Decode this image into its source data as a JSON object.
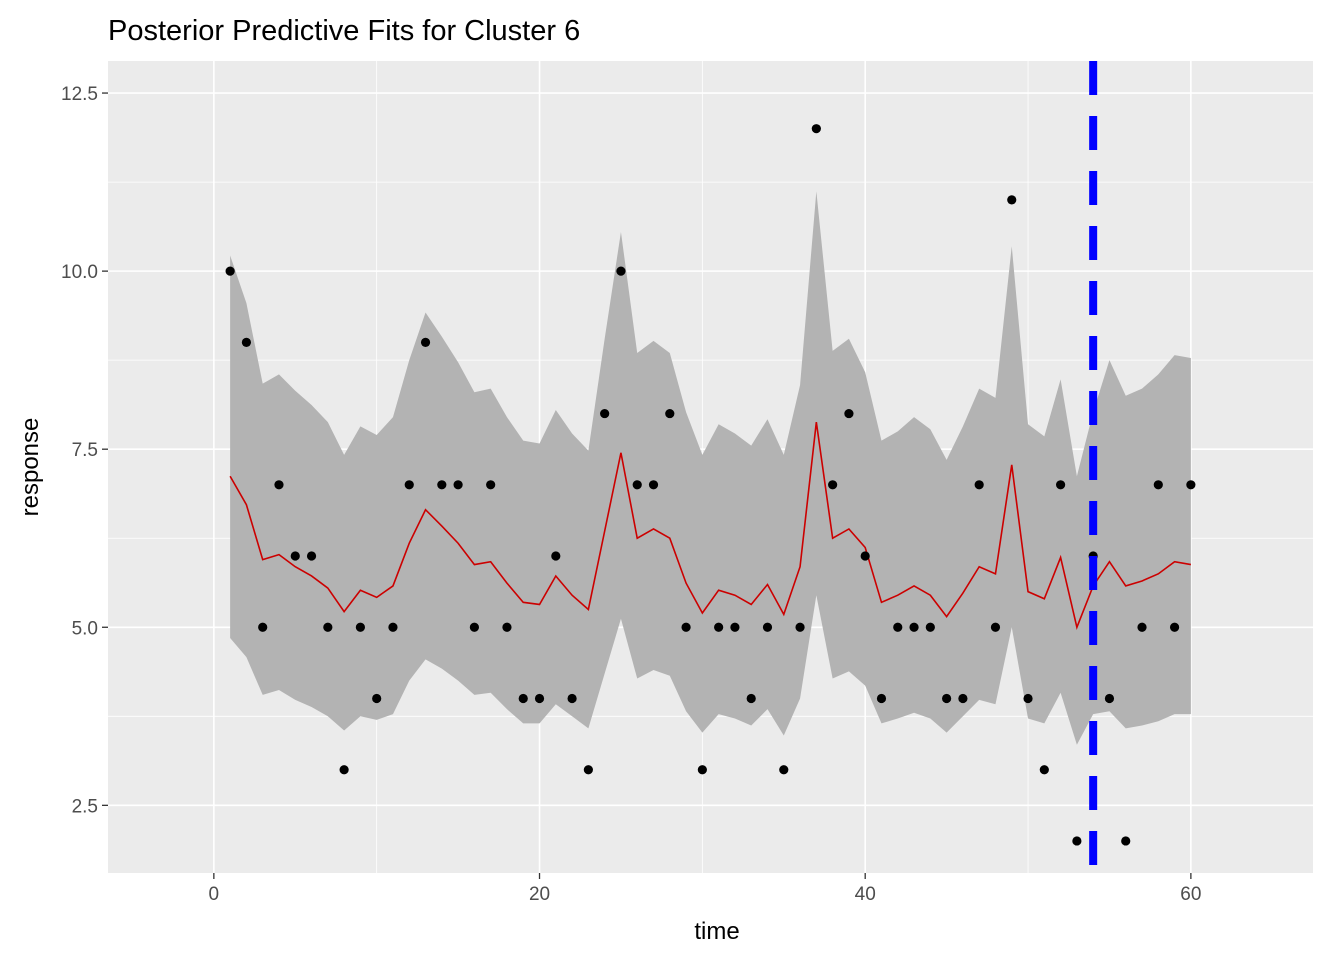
{
  "chart_data": {
    "type": "line",
    "title": "Posterior Predictive Fits for Cluster 6",
    "xlabel": "time",
    "ylabel": "response",
    "xlim": [
      -6.5,
      67.5
    ],
    "ylim": [
      1.55,
      12.95
    ],
    "x_ticks": [
      0,
      20,
      40,
      60
    ],
    "x_tick_labels": [
      "0",
      "20",
      "40",
      "60"
    ],
    "y_ticks": [
      2.5,
      5.0,
      7.5,
      10.0,
      12.5
    ],
    "y_tick_labels": [
      "2.5",
      "5.0",
      "7.5",
      "10.0",
      "12.5"
    ],
    "grid": true,
    "colors": {
      "panel": "#ebebeb",
      "grid": "#ffffff",
      "band": "#b3b3b3",
      "fit_line": "#cc0000",
      "points": "#000000",
      "vline": "#0000ff"
    },
    "vline_x": 54,
    "series": [
      {
        "type": "scatter",
        "x": [
          1,
          2,
          3,
          4,
          5,
          6,
          7,
          8,
          9,
          10,
          11,
          12,
          13,
          14,
          15,
          16,
          17,
          18,
          19,
          20,
          21,
          22,
          23,
          24,
          25,
          26,
          27,
          28,
          29,
          30,
          31,
          32,
          33,
          34,
          35,
          36,
          37,
          38,
          39,
          40,
          41,
          42,
          43,
          44,
          45,
          46,
          47,
          48,
          49,
          50,
          51,
          52,
          53,
          54,
          55,
          56,
          57,
          58,
          59,
          60
        ],
        "values": [
          10,
          9,
          5,
          7,
          6,
          6,
          5,
          3,
          5,
          4,
          5,
          7,
          9,
          7,
          7,
          5,
          7,
          5,
          4,
          4,
          6,
          4,
          3,
          8,
          10,
          7,
          7,
          8,
          5,
          3,
          5,
          5,
          4,
          5,
          3,
          5,
          12,
          7,
          8,
          6,
          4,
          5,
          5,
          5,
          4,
          4,
          7,
          5,
          11,
          4,
          3,
          7,
          2,
          6,
          4,
          2,
          5,
          7,
          5,
          7
        ]
      },
      {
        "type": "line",
        "x": [
          1,
          2,
          3,
          4,
          5,
          6,
          7,
          8,
          9,
          10,
          11,
          12,
          13,
          14,
          15,
          16,
          17,
          18,
          19,
          20,
          21,
          22,
          23,
          24,
          25,
          26,
          27,
          28,
          29,
          30,
          31,
          32,
          33,
          34,
          35,
          36,
          37,
          38,
          39,
          40,
          41,
          42,
          43,
          44,
          45,
          46,
          47,
          48,
          49,
          50,
          51,
          52,
          53,
          54,
          55,
          56,
          57,
          58,
          59,
          60
        ],
        "values": [
          7.12,
          6.72,
          5.95,
          6.02,
          5.85,
          5.72,
          5.55,
          5.22,
          5.52,
          5.42,
          5.58,
          6.18,
          6.65,
          6.42,
          6.18,
          5.88,
          5.92,
          5.62,
          5.35,
          5.32,
          5.72,
          5.45,
          5.25,
          6.35,
          7.45,
          6.25,
          6.38,
          6.25,
          5.62,
          5.2,
          5.52,
          5.45,
          5.32,
          5.6,
          5.18,
          5.85,
          7.88,
          6.25,
          6.38,
          6.12,
          5.35,
          5.45,
          5.58,
          5.45,
          5.15,
          5.48,
          5.85,
          5.75,
          7.28,
          5.5,
          5.4,
          5.98,
          5.0,
          5.58,
          5.92,
          5.58,
          5.65,
          5.75,
          5.92,
          5.88
        ]
      },
      {
        "type": "area",
        "x": [
          1,
          2,
          3,
          4,
          5,
          6,
          7,
          8,
          9,
          10,
          11,
          12,
          13,
          14,
          15,
          16,
          17,
          18,
          19,
          20,
          21,
          22,
          23,
          24,
          25,
          26,
          27,
          28,
          29,
          30,
          31,
          32,
          33,
          34,
          35,
          36,
          37,
          38,
          39,
          40,
          41,
          42,
          43,
          44,
          45,
          46,
          47,
          48,
          49,
          50,
          51,
          52,
          53,
          54,
          55,
          56,
          57,
          58,
          59,
          60
        ],
        "upper": [
          10.22,
          9.55,
          8.42,
          8.55,
          8.32,
          8.12,
          7.88,
          7.42,
          7.82,
          7.7,
          7.95,
          8.75,
          9.42,
          9.08,
          8.72,
          8.3,
          8.35,
          7.95,
          7.62,
          7.58,
          8.05,
          7.72,
          7.48,
          9.05,
          10.55,
          8.85,
          9.02,
          8.85,
          8.02,
          7.42,
          7.85,
          7.72,
          7.55,
          7.92,
          7.42,
          8.4,
          11.12,
          8.88,
          9.05,
          8.58,
          7.62,
          7.75,
          7.95,
          7.78,
          7.35,
          7.82,
          8.35,
          8.22,
          10.35,
          7.85,
          7.68,
          8.48,
          7.12,
          8.02,
          8.75,
          8.25,
          8.35,
          8.55,
          8.82,
          8.78
        ],
        "lower": [
          4.85,
          4.58,
          4.05,
          4.12,
          3.98,
          3.88,
          3.75,
          3.55,
          3.75,
          3.7,
          3.78,
          4.25,
          4.55,
          4.42,
          4.25,
          4.05,
          4.08,
          3.85,
          3.65,
          3.65,
          3.92,
          3.75,
          3.58,
          4.35,
          5.12,
          4.28,
          4.4,
          4.32,
          3.82,
          3.52,
          3.78,
          3.72,
          3.62,
          3.85,
          3.48,
          4.0,
          5.45,
          4.28,
          4.38,
          4.18,
          3.65,
          3.72,
          3.8,
          3.72,
          3.52,
          3.75,
          3.98,
          3.92,
          5.0,
          3.72,
          3.65,
          4.08,
          3.35,
          3.78,
          3.82,
          3.58,
          3.62,
          3.68,
          3.78,
          3.78
        ]
      }
    ]
  }
}
